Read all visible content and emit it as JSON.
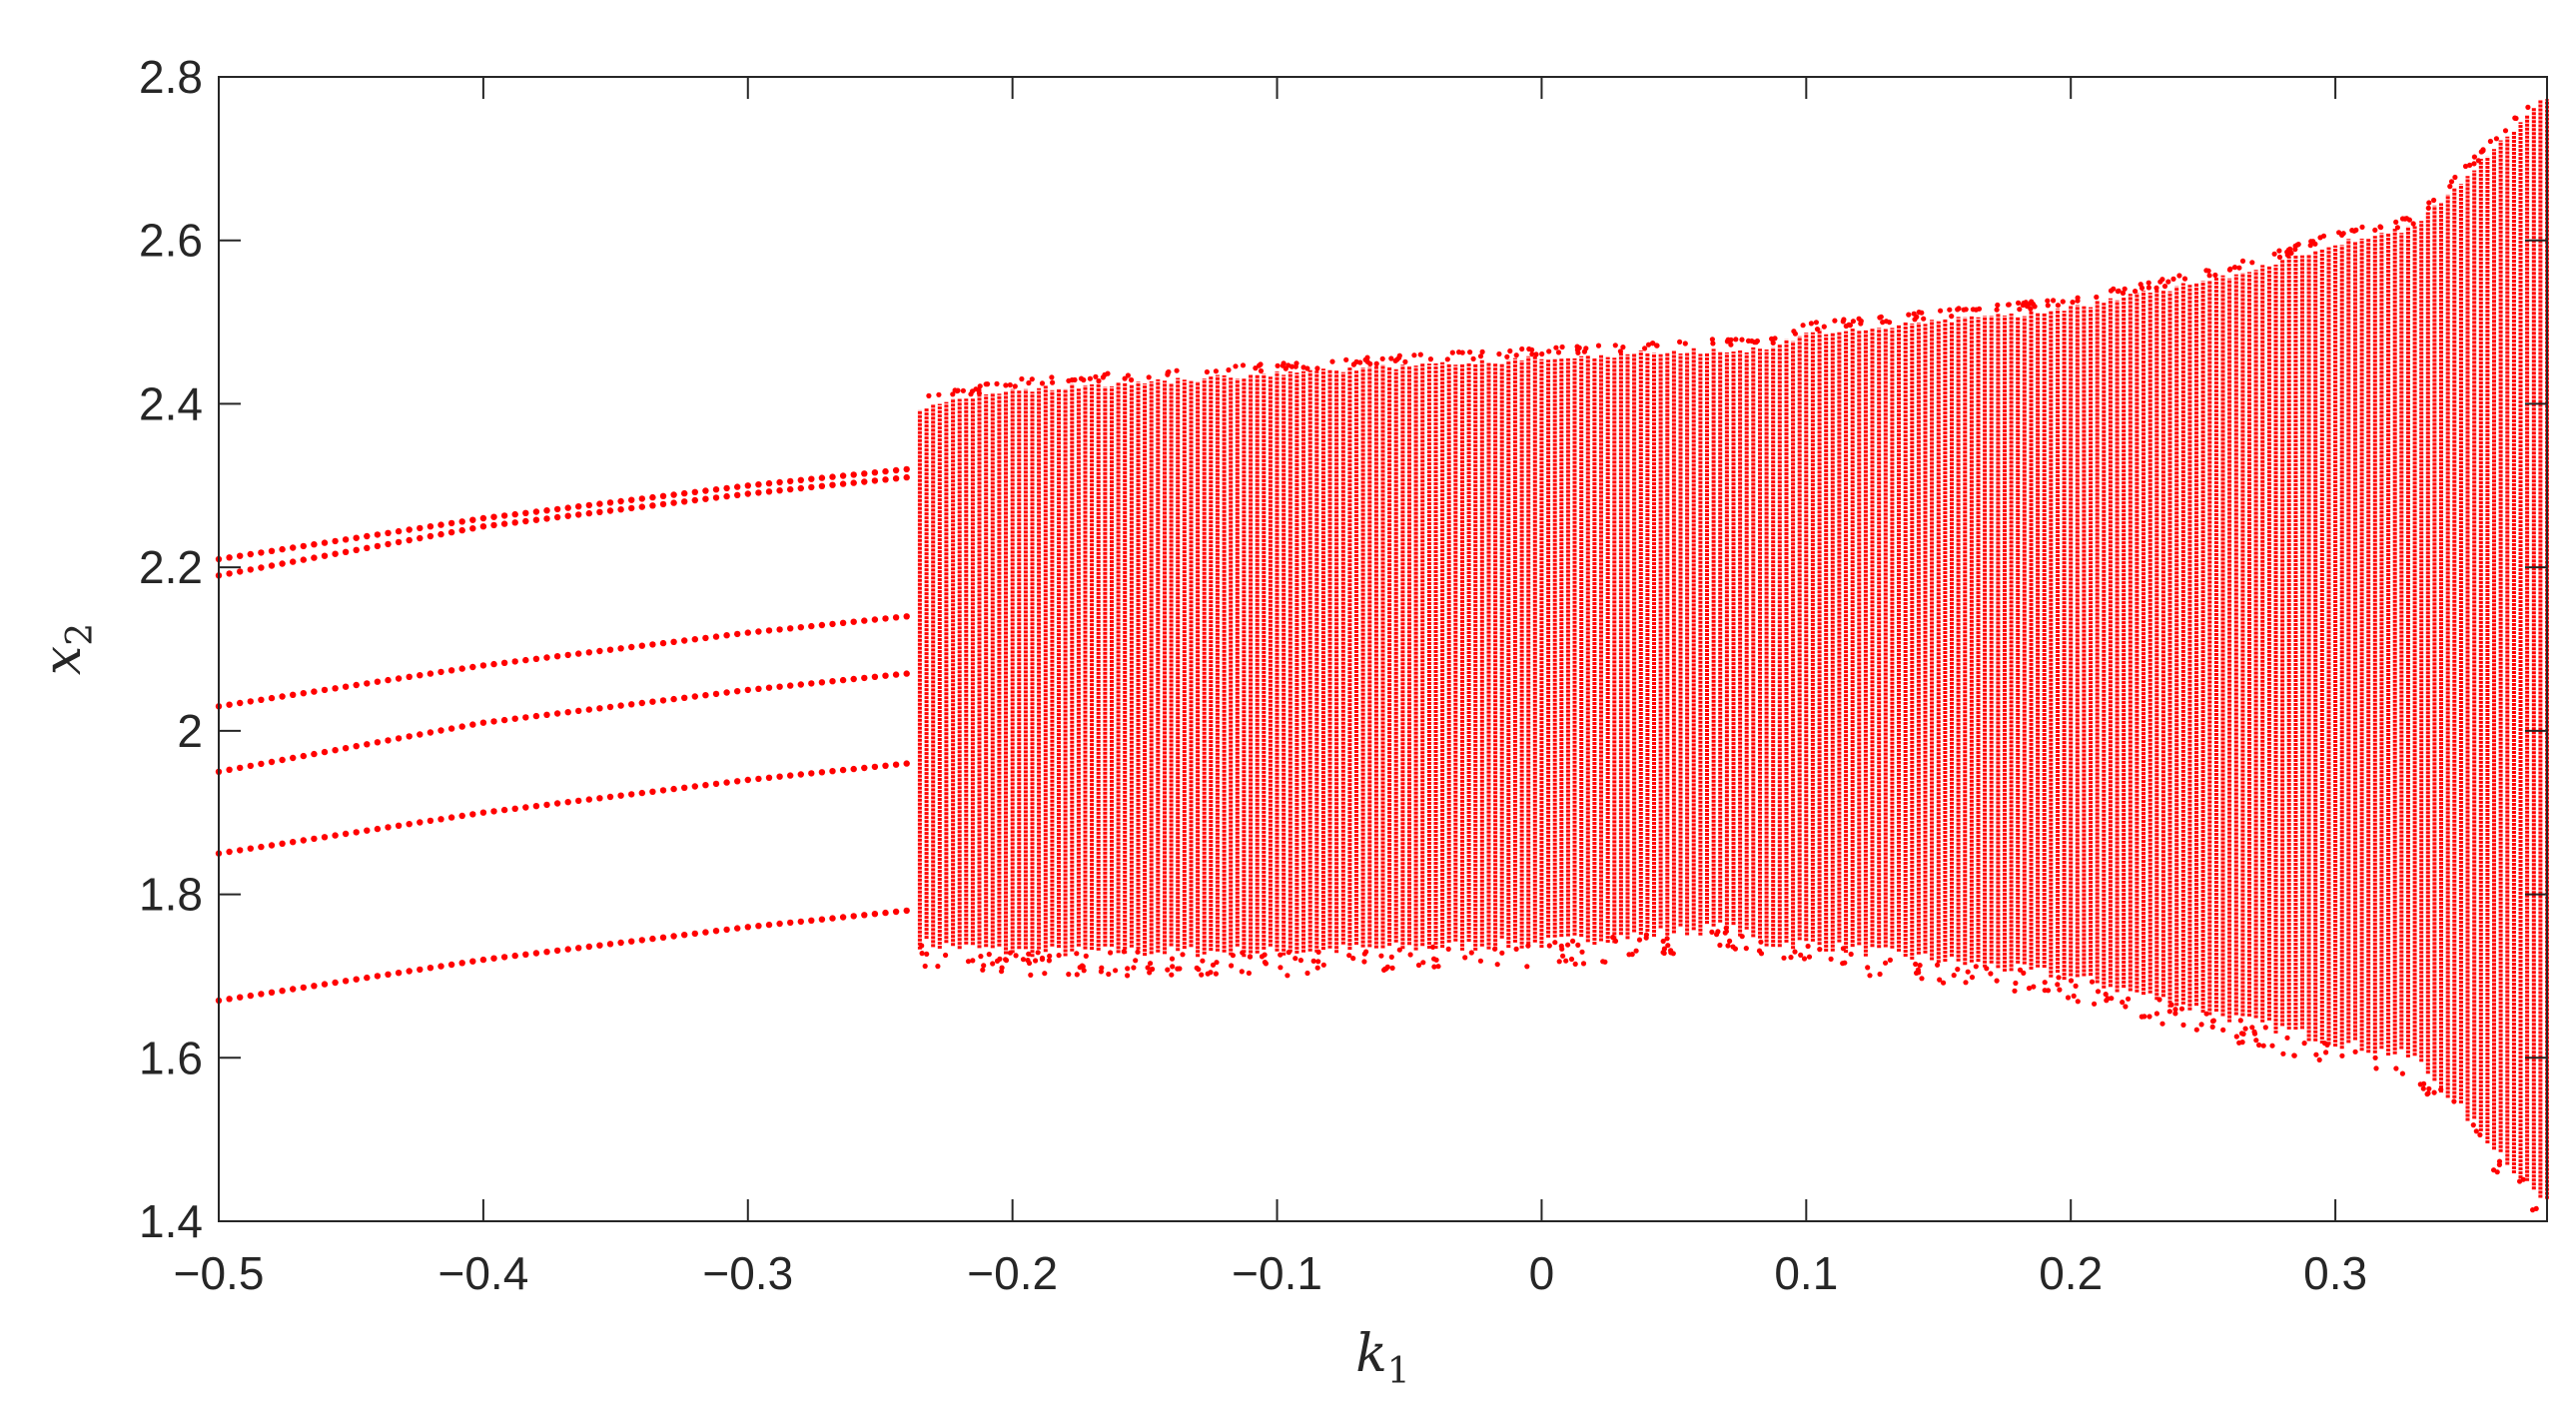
{
  "chart_data": {
    "type": "scatter",
    "title": "",
    "xlabel": {
      "base": "k",
      "sub": "1"
    },
    "ylabel": {
      "base": "x",
      "sub": "2"
    },
    "xlim": [
      -0.5,
      0.38
    ],
    "ylim": [
      1.4,
      2.8
    ],
    "xticks": [
      "−0.5",
      "−0.4",
      "−0.3",
      "−0.2",
      "−0.1",
      "0",
      "0.1",
      "0.2",
      "0.3"
    ],
    "xtick_values": [
      -0.5,
      -0.4,
      -0.3,
      -0.2,
      -0.1,
      0,
      0.1,
      0.2,
      0.3
    ],
    "yticks": [
      "1.4",
      "1.6",
      "1.8",
      "2",
      "2.2",
      "2.4",
      "2.6",
      "2.8"
    ],
    "ytick_values": [
      1.4,
      1.6,
      1.8,
      2.0,
      2.2,
      2.4,
      2.6,
      2.8
    ],
    "grid": false,
    "marker_color": "#ff0000",
    "axis_color": "#262626",
    "series": [
      {
        "x": [
          -0.5,
          -0.4,
          -0.3,
          -0.24
        ],
        "y": [
          1.67,
          1.72,
          1.76,
          1.78
        ]
      },
      {
        "x": [
          -0.5,
          -0.4,
          -0.3,
          -0.24
        ],
        "y": [
          1.85,
          1.9,
          1.94,
          1.96
        ]
      },
      {
        "x": [
          -0.5,
          -0.4,
          -0.3,
          -0.24
        ],
        "y": [
          1.95,
          2.01,
          2.05,
          2.07
        ]
      },
      {
        "x": [
          -0.5,
          -0.4,
          -0.3,
          -0.24
        ],
        "y": [
          2.03,
          2.08,
          2.12,
          2.14
        ]
      },
      {
        "x": [
          -0.5,
          -0.4,
          -0.3,
          -0.24
        ],
        "y": [
          2.19,
          2.25,
          2.29,
          2.31
        ]
      },
      {
        "x": [
          -0.5,
          -0.4,
          -0.3,
          -0.24
        ],
        "y": [
          2.21,
          2.26,
          2.3,
          2.32
        ]
      }
    ],
    "chaotic_band": {
      "x": [
        -0.235,
        -0.2,
        -0.1,
        0,
        0.07,
        0.085,
        0.1,
        0.2,
        0.26,
        0.3,
        0.33,
        0.38
      ],
      "y_min": [
        1.74,
        1.73,
        1.73,
        1.74,
        1.76,
        1.74,
        1.74,
        1.7,
        1.65,
        1.62,
        1.6,
        1.42
      ],
      "y_max": [
        2.4,
        2.42,
        2.44,
        2.46,
        2.47,
        2.47,
        2.49,
        2.52,
        2.56,
        2.6,
        2.62,
        2.78
      ]
    }
  }
}
